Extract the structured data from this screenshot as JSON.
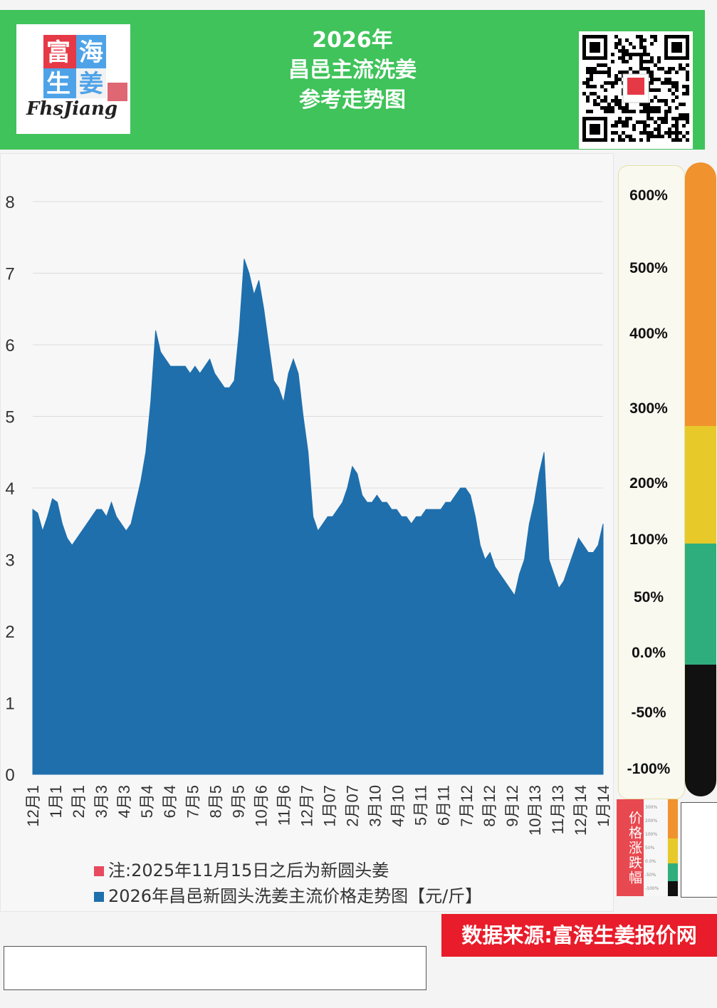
{
  "header": {
    "title_lines": [
      "2026年",
      "昌邑主流洗姜",
      "参考走势图"
    ],
    "logo": {
      "chars": [
        "富",
        "海",
        "生",
        "姜"
      ],
      "brand": "FhsJiang"
    },
    "bg_color": "#3fc35a"
  },
  "chart_data": {
    "type": "area",
    "title": "",
    "xlabel": "",
    "ylabel": "",
    "ylim": [
      0,
      8
    ],
    "yticks": [
      "0",
      "1",
      "2",
      "3",
      "4",
      "5",
      "6",
      "7",
      "8"
    ],
    "grid": true,
    "x_tick_labels": [
      "12月1",
      "1月1",
      "2月1",
      "3月3",
      "4月3",
      "5月4",
      "6月4",
      "7月5",
      "8月5",
      "9月5",
      "10月6",
      "11月6",
      "12月7",
      "1月07",
      "2月07",
      "3月10",
      "4月10",
      "5月11",
      "6月11",
      "7月12",
      "8月12",
      "9月12",
      "10月13",
      "11月13",
      "12月14",
      "1月14"
    ],
    "series": [
      {
        "name": "2026年昌邑新圆头洗姜主流价格走势图【元/斤】",
        "color": "#1f6fad",
        "values": [
          3.7,
          3.65,
          3.4,
          3.6,
          3.85,
          3.8,
          3.5,
          3.3,
          3.2,
          3.3,
          3.4,
          3.5,
          3.6,
          3.7,
          3.7,
          3.6,
          3.8,
          3.6,
          3.5,
          3.4,
          3.5,
          3.8,
          4.1,
          4.5,
          5.2,
          6.2,
          5.9,
          5.8,
          5.7,
          5.7,
          5.7,
          5.7,
          5.6,
          5.7,
          5.6,
          5.7,
          5.8,
          5.6,
          5.5,
          5.4,
          5.4,
          5.5,
          6.2,
          7.2,
          7.0,
          6.7,
          6.9,
          6.5,
          6.0,
          5.5,
          5.4,
          5.2,
          5.6,
          5.8,
          5.6,
          5.0,
          4.5,
          3.6,
          3.4,
          3.5,
          3.6,
          3.6,
          3.7,
          3.8,
          4.0,
          4.3,
          4.2,
          3.9,
          3.8,
          3.8,
          3.9,
          3.8,
          3.8,
          3.7,
          3.7,
          3.6,
          3.6,
          3.5,
          3.6,
          3.6,
          3.7,
          3.7,
          3.7,
          3.7,
          3.8,
          3.8,
          3.9,
          4.0,
          4.0,
          3.9,
          3.6,
          3.2,
          3.0,
          3.1,
          2.9,
          2.8,
          2.7,
          2.6,
          2.5,
          2.8,
          3.0,
          3.5,
          3.8,
          4.2,
          4.5,
          3.0,
          2.8,
          2.6,
          2.7,
          2.9,
          3.1,
          3.3,
          3.2,
          3.1,
          3.1,
          3.2,
          3.5
        ]
      }
    ],
    "note": {
      "text": "注:2025年11月15日之后为新圆头姜",
      "color": "#e84a5f"
    }
  },
  "gauge": {
    "labels": [
      "600%",
      "500%",
      "400%",
      "300%",
      "200%",
      "100%",
      "50%",
      "0.0%",
      "-50%",
      "-100%"
    ],
    "colors": [
      "#f0922e",
      "#e8c92a",
      "#2fae7d",
      "#111111"
    ]
  },
  "mini_legend": {
    "label": "价格涨跌幅",
    "ticks": [
      "300%",
      "200%",
      "100%",
      "50%",
      "0.0%",
      "-50%",
      "-100%"
    ]
  },
  "source": {
    "text": "数据来源:富海生姜报价网",
    "bg": "#e81c2a"
  }
}
